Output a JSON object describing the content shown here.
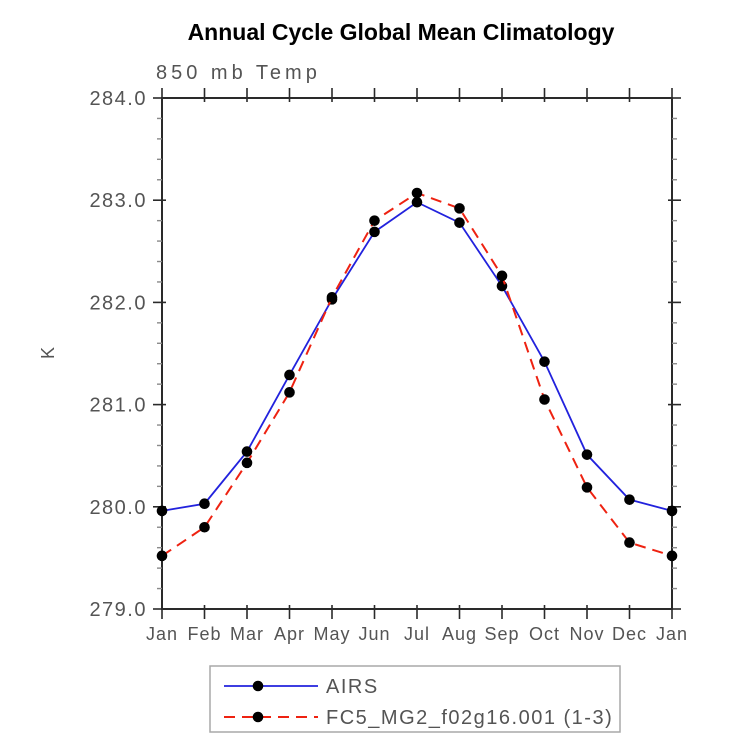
{
  "chart_data": {
    "type": "line",
    "title": "Annual Cycle Global Mean Climatology",
    "subtitle": "850 mb Temp",
    "xlabel": "",
    "ylabel": "K",
    "categories": [
      "Jan",
      "Feb",
      "Mar",
      "Apr",
      "May",
      "Jun",
      "Jul",
      "Aug",
      "Sep",
      "Oct",
      "Nov",
      "Dec",
      "Jan"
    ],
    "ylim": [
      279.0,
      284.0
    ],
    "ytick_major_interval": 1.0,
    "ytick_minor_interval": 0.2,
    "ytick_labels": [
      "279.0",
      "280.0",
      "281.0",
      "282.0",
      "283.0",
      "284.0"
    ],
    "grid": false,
    "legend_position": "bottom-center",
    "series": [
      {
        "name": "AIRS",
        "line_style": "solid",
        "color": "#2222dd",
        "marker": "filled-circle",
        "marker_color": "#000000",
        "values": [
          279.96,
          280.03,
          280.54,
          281.29,
          282.03,
          282.69,
          282.98,
          282.78,
          282.16,
          281.42,
          280.51,
          280.07,
          279.96
        ]
      },
      {
        "name": "FC5_MG2_f02g16.001 (1-3)",
        "line_style": "dashed",
        "color": "#ee2211",
        "marker": "filled-circle",
        "marker_color": "#000000",
        "values": [
          279.52,
          279.8,
          280.43,
          281.12,
          282.05,
          282.8,
          283.07,
          282.92,
          282.26,
          281.05,
          280.19,
          279.65,
          279.52
        ]
      }
    ]
  },
  "colors": {
    "axis": "#2a2a2a",
    "minor_tick": "#8a8a8a",
    "text_gray": "#545454",
    "legend_border": "#a8a8a8",
    "background": "#ffffff"
  }
}
